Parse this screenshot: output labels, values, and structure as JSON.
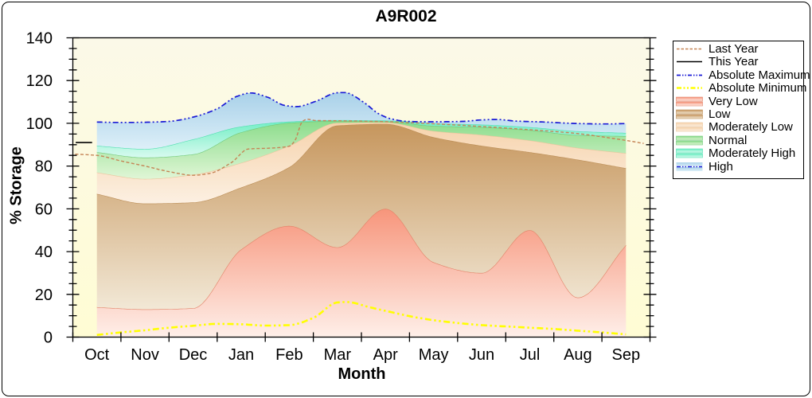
{
  "title": "A9R002",
  "axes": {
    "x_label": "Month",
    "y_label": "% Storage",
    "y_ticks": [
      0,
      20,
      40,
      60,
      80,
      100,
      120,
      140
    ],
    "y_minor_step": 5,
    "y_max": 140,
    "months": [
      "Oct",
      "Nov",
      "Dec",
      "Jan",
      "Feb",
      "Mar",
      "Apr",
      "May",
      "Jun",
      "Jul",
      "Aug",
      "Sep"
    ]
  },
  "legend": {
    "items": [
      {
        "id": "last_year",
        "label": "Last Year",
        "kind": "line"
      },
      {
        "id": "this_year",
        "label": "This Year",
        "kind": "line"
      },
      {
        "id": "absolute_maximum",
        "label": "Absolute Maximum",
        "kind": "line"
      },
      {
        "id": "absolute_minimum",
        "label": "Absolute Minimum",
        "kind": "line"
      },
      {
        "id": "very_low",
        "label": "Very Low",
        "kind": "band"
      },
      {
        "id": "low",
        "label": "Low",
        "kind": "band"
      },
      {
        "id": "moderately_low",
        "label": "Moderately Low",
        "kind": "band"
      },
      {
        "id": "normal",
        "label": "Normal",
        "kind": "band"
      },
      {
        "id": "moderately_high",
        "label": "Moderately High",
        "kind": "band"
      },
      {
        "id": "high",
        "label": "High",
        "kind": "band-line"
      }
    ]
  },
  "chart_data": {
    "type": "area",
    "title": "A9R002",
    "xlabel": "Month",
    "ylabel": "% Storage",
    "ylim": [
      0,
      140
    ],
    "categories": [
      "Oct",
      "Nov",
      "Dec",
      "Jan",
      "Feb",
      "Mar",
      "Apr",
      "May",
      "Jun",
      "Jul",
      "Aug",
      "Sep"
    ],
    "bands": [
      {
        "id": "very_low",
        "name": "Very Low",
        "upper": [
          14,
          13,
          13.5,
          41,
          52,
          42,
          60,
          35,
          30,
          50,
          18.5,
          43
        ]
      },
      {
        "id": "low",
        "name": "Low",
        "upper": [
          67,
          62.5,
          63,
          70,
          79.5,
          99,
          99.7,
          93.5,
          89.5,
          86.5,
          83,
          79
        ]
      },
      {
        "id": "moderately_low",
        "name": "Moderately Low",
        "upper": [
          77,
          74,
          76,
          81.5,
          89.5,
          100.2,
          100.4,
          96.4,
          94.6,
          92,
          88.5,
          86
        ]
      },
      {
        "id": "normal",
        "name": "Normal",
        "upper": [
          86.5,
          84,
          85.5,
          95.8,
          100.2,
          101.1,
          100.9,
          98.8,
          98.2,
          96.8,
          94.5,
          94
        ]
      },
      {
        "id": "moderately_high",
        "name": "Moderately High",
        "upper": [
          89.5,
          88,
          92.5,
          98.5,
          100.8,
          101.5,
          101.3,
          100,
          99.4,
          98.2,
          96.3,
          95.5
        ]
      },
      {
        "id": "high",
        "name": "High",
        "upper_ref": "absolute_maximum"
      }
    ],
    "lines": [
      {
        "id": "last_year",
        "name": "Last Year",
        "points": [
          [
            -0.45,
            85.6
          ],
          [
            0,
            85
          ],
          [
            0.5,
            82.4
          ],
          [
            1,
            80
          ],
          [
            1.5,
            77.4
          ],
          [
            2,
            75.7
          ],
          [
            2.35,
            76.6
          ],
          [
            2.8,
            81.7
          ],
          [
            3.15,
            88
          ],
          [
            3.6,
            88.4
          ],
          [
            4,
            89.3
          ],
          [
            4.12,
            92
          ],
          [
            4.27,
            100.8
          ],
          [
            4.38,
            101.9
          ],
          [
            4.55,
            101.3
          ],
          [
            5,
            101.2
          ],
          [
            5.5,
            101
          ],
          [
            6,
            100.8
          ],
          [
            6.5,
            100.3
          ],
          [
            7,
            99.8
          ],
          [
            7.5,
            99.2
          ],
          [
            8,
            98.5
          ],
          [
            8.5,
            97.8
          ],
          [
            9,
            97
          ],
          [
            9.5,
            96.2
          ],
          [
            10,
            95.2
          ],
          [
            10.5,
            93.7
          ],
          [
            11,
            92
          ],
          [
            11.37,
            90.6
          ]
        ]
      },
      {
        "id": "this_year",
        "name": "This Year",
        "points": [
          [
            -0.44,
            91
          ],
          [
            -0.1,
            91
          ]
        ]
      },
      {
        "id": "absolute_maximum",
        "name": "Absolute Maximum",
        "points": [
          [
            0,
            100.6
          ],
          [
            0.5,
            100.4
          ],
          [
            1,
            100.5
          ],
          [
            1.5,
            100.9
          ],
          [
            2,
            102.9
          ],
          [
            2.5,
            106.8
          ],
          [
            2.9,
            112.5
          ],
          [
            3.2,
            114.2
          ],
          [
            3.55,
            112.2
          ],
          [
            3.9,
            108.4
          ],
          [
            4.15,
            107.8
          ],
          [
            4.55,
            110.3
          ],
          [
            5,
            114.3
          ],
          [
            5.15,
            114.4
          ],
          [
            5.55,
            109.8
          ],
          [
            5.85,
            104.6
          ],
          [
            6.1,
            102.2
          ],
          [
            6.45,
            100.9
          ],
          [
            7,
            100.7
          ],
          [
            7.6,
            100.9
          ],
          [
            8,
            101.6
          ],
          [
            8.3,
            101.8
          ],
          [
            8.75,
            101
          ],
          [
            9.2,
            100.7
          ],
          [
            10,
            99.9
          ],
          [
            10.6,
            99.7
          ],
          [
            11,
            99.9
          ]
        ]
      },
      {
        "id": "absolute_minimum",
        "name": "Absolute Minimum",
        "points": [
          [
            0,
            1
          ],
          [
            0.5,
            2.2
          ],
          [
            1,
            3.2
          ],
          [
            1.5,
            4.4
          ],
          [
            2,
            5.3
          ],
          [
            2.5,
            6.2
          ],
          [
            3,
            6
          ],
          [
            3.5,
            5.4
          ],
          [
            4,
            5.6
          ],
          [
            4.5,
            9
          ],
          [
            5,
            16.2
          ],
          [
            5.2,
            16.4
          ],
          [
            5.7,
            13.8
          ],
          [
            6,
            12.3
          ],
          [
            6.5,
            9.8
          ],
          [
            7,
            7.9
          ],
          [
            7.5,
            6.6
          ],
          [
            8,
            5.6
          ],
          [
            8.5,
            5
          ],
          [
            9,
            4.4
          ],
          [
            9.5,
            3.8
          ],
          [
            10,
            3
          ],
          [
            10.5,
            2.2
          ],
          [
            11,
            1.3
          ]
        ]
      }
    ]
  },
  "colors": {
    "plot_bg_top": "#FBF9E8",
    "plot_bg_bottom": "#FFFCD4",
    "frame": "#000000",
    "last_year": "#C58455",
    "this_year": "#000000",
    "absolute_maximum": "#1A1AD6",
    "absolute_minimum": "#FFFF00",
    "bands": {
      "very_low": {
        "fill_top": "#F7957B",
        "fill_bottom": "#FEEFE9",
        "edge": "#E28166"
      },
      "low": {
        "fill_top": "#C6965D",
        "fill_bottom": "#F2E8D6",
        "edge": "#BC8E57"
      },
      "moderately_low": {
        "fill_top": "#F6D2AB",
        "fill_bottom": "#FCF0E2",
        "edge": "#EAC59C"
      },
      "normal": {
        "fill_top": "#8BDC8B",
        "fill_bottom": "#E0F6D6",
        "edge": "#6FC878"
      },
      "moderately_high": {
        "fill_top": "#6FEEC4",
        "fill_bottom": "#D8FAEF",
        "edge": "#4FDFB0"
      },
      "high": {
        "fill_top": "#A9D1E9",
        "fill_bottom": "#DDEFF8",
        "edge": "#1A1AD6"
      }
    }
  }
}
